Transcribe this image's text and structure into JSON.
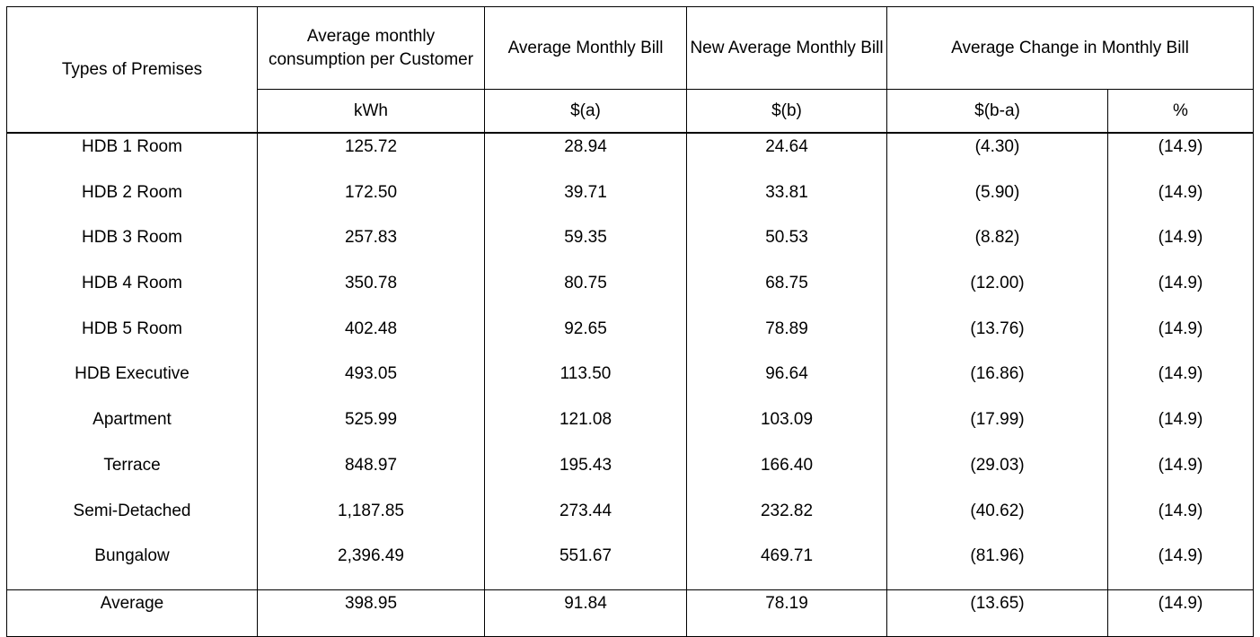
{
  "header": {
    "type": "Types of Premises",
    "consumption": "Average monthly consumption per Customer",
    "bill": "Average Monthly Bill",
    "new_bill": "New Average Monthly Bill",
    "change": "Average Change in Monthly Bill"
  },
  "units": {
    "consumption": "kWh",
    "bill": "$(a)",
    "new_bill": "$(b)",
    "change_abs": "$(b-a)",
    "change_pct": "%"
  },
  "rows": [
    {
      "type": "HDB 1 Room",
      "consumption": "125.72",
      "bill": "28.94",
      "new_bill": "24.64",
      "change_abs": "(4.30)",
      "change_pct": "(14.9)"
    },
    {
      "type": "HDB 2 Room",
      "consumption": "172.50",
      "bill": "39.71",
      "new_bill": "33.81",
      "change_abs": "(5.90)",
      "change_pct": "(14.9)"
    },
    {
      "type": "HDB 3 Room",
      "consumption": "257.83",
      "bill": "59.35",
      "new_bill": "50.53",
      "change_abs": "(8.82)",
      "change_pct": "(14.9)"
    },
    {
      "type": "HDB 4 Room",
      "consumption": "350.78",
      "bill": "80.75",
      "new_bill": "68.75",
      "change_abs": "(12.00)",
      "change_pct": "(14.9)"
    },
    {
      "type": "HDB 5 Room",
      "consumption": "402.48",
      "bill": "92.65",
      "new_bill": "78.89",
      "change_abs": "(13.76)",
      "change_pct": "(14.9)"
    },
    {
      "type": "HDB Executive",
      "consumption": "493.05",
      "bill": "113.50",
      "new_bill": "96.64",
      "change_abs": "(16.86)",
      "change_pct": "(14.9)"
    },
    {
      "type": "Apartment",
      "consumption": "525.99",
      "bill": "121.08",
      "new_bill": "103.09",
      "change_abs": "(17.99)",
      "change_pct": "(14.9)"
    },
    {
      "type": "Terrace",
      "consumption": "848.97",
      "bill": "195.43",
      "new_bill": "166.40",
      "change_abs": "(29.03)",
      "change_pct": "(14.9)"
    },
    {
      "type": "Semi-Detached",
      "consumption": "1,187.85",
      "bill": "273.44",
      "new_bill": "232.82",
      "change_abs": "(40.62)",
      "change_pct": "(14.9)"
    },
    {
      "type": "Bungalow",
      "consumption": "2,396.49",
      "bill": "551.67",
      "new_bill": "469.71",
      "change_abs": "(81.96)",
      "change_pct": "(14.9)"
    }
  ],
  "average": {
    "type": "Average",
    "consumption": "398.95",
    "bill": "91.84",
    "new_bill": "78.19",
    "change_abs": "(13.65)",
    "change_pct": "(14.9)"
  }
}
